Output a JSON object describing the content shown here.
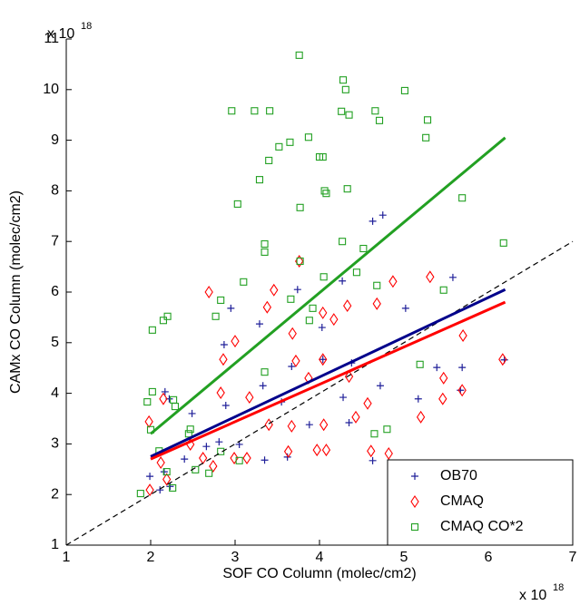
{
  "chart_data": {
    "type": "scatter",
    "x_label": "SOF CO Column (molec/cm2)",
    "y_label": "CAMx CO Column (molec/cm2)",
    "x_multiplier": {
      "base": "x 10",
      "exponent": "18"
    },
    "y_multiplier": {
      "base": "x 10",
      "exponent": "18"
    },
    "xlim": [
      1,
      7
    ],
    "xticks": [
      1,
      2,
      3,
      4,
      5,
      6,
      7
    ],
    "ylim": [
      1,
      11
    ],
    "yticks": [
      1,
      2,
      3,
      4,
      5,
      6,
      7,
      8,
      9,
      10,
      11
    ],
    "legend": "lower right",
    "series": [
      {
        "name": "OB70",
        "color": "#1f1f99",
        "marker": "plus",
        "x": [
          4.63,
          4.75,
          5.58,
          3.74,
          4.27,
          2.95,
          3.29,
          5.02,
          4.03,
          2.87,
          4.38,
          4.04,
          3.67,
          3.33,
          2.89,
          2.49,
          2.81,
          3.55,
          3.88,
          4.28,
          4.72,
          5.17,
          5.69,
          6.19,
          5.39,
          5.67,
          4.63,
          3.35,
          3.05,
          2.66,
          2.4,
          2.17,
          2.22,
          2.16,
          1.99,
          2.23,
          2.11,
          4.35,
          3.62
        ],
        "values": [
          7.4,
          7.52,
          6.29,
          6.05,
          6.22,
          5.68,
          5.37,
          5.68,
          5.3,
          4.96,
          4.6,
          4.67,
          4.53,
          4.15,
          3.76,
          3.6,
          3.04,
          3.83,
          3.38,
          3.92,
          4.15,
          3.89,
          4.51,
          4.66,
          4.51,
          4.06,
          2.67,
          2.68,
          2.99,
          2.95,
          2.7,
          4.03,
          3.89,
          2.45,
          2.36,
          2.16,
          2.09,
          3.42,
          2.74
        ]
      },
      {
        "name": "CMAQ",
        "color": "#ff0000",
        "marker": "diamond",
        "x": [
          3.76,
          5.31,
          2.69,
          3.38,
          3.0,
          2.86,
          4.17,
          4.33,
          4.68,
          4.04,
          3.68,
          3.72,
          2.83,
          3.17,
          3.4,
          3.87,
          4.04,
          4.35,
          4.57,
          5.2,
          5.47,
          5.7,
          5.69,
          6.17,
          4.43,
          4.05,
          3.97,
          4.08,
          3.63,
          3.67,
          2.99,
          3.14,
          2.74,
          2.62,
          2.47,
          2.15,
          1.98,
          2.12,
          1.99,
          2.19,
          4.61,
          4.82,
          5.46,
          4.87,
          3.46
        ],
        "values": [
          6.61,
          6.3,
          6.0,
          5.7,
          5.03,
          4.67,
          5.46,
          5.73,
          5.77,
          5.59,
          5.18,
          4.64,
          4.01,
          3.92,
          3.38,
          4.3,
          4.67,
          4.33,
          3.8,
          3.53,
          4.3,
          5.14,
          4.06,
          4.67,
          3.53,
          3.38,
          2.88,
          2.88,
          2.85,
          3.35,
          2.72,
          2.72,
          2.56,
          2.72,
          2.99,
          3.89,
          3.44,
          2.63,
          2.09,
          2.3,
          2.86,
          2.81,
          3.89,
          6.21,
          6.04
        ]
      },
      {
        "name": "CMAQ CO*2",
        "color": "#22a022",
        "marker": "square",
        "x": [
          3.76,
          4.28,
          4.31,
          5.01,
          4.66,
          4.26,
          4.35,
          2.96,
          3.23,
          3.41,
          5.28,
          4.71,
          5.26,
          3.87,
          3.65,
          3.52,
          4.0,
          4.04,
          3.4,
          3.29,
          4.06,
          4.33,
          4.08,
          3.03,
          3.77,
          5.69,
          6.18,
          4.27,
          3.35,
          3.35,
          4.52,
          3.77,
          4.05,
          3.1,
          4.44,
          4.68,
          5.47,
          2.83,
          3.66,
          2.15,
          2.2,
          2.02,
          2.77,
          5.19,
          2.02,
          2.27,
          1.96,
          2.29,
          2.47,
          2.45,
          2.83,
          3.05,
          4.8,
          4.65,
          2.0,
          2.1,
          2.53,
          2.69,
          1.88,
          2.19,
          2.26,
          3.35,
          3.88,
          3.92
        ],
        "values": [
          10.68,
          10.19,
          10.0,
          9.98,
          9.58,
          9.57,
          9.5,
          9.58,
          9.58,
          9.58,
          9.4,
          9.39,
          9.05,
          9.06,
          8.96,
          8.87,
          8.67,
          8.67,
          8.6,
          8.22,
          8.0,
          8.04,
          7.95,
          7.74,
          7.67,
          7.86,
          6.97,
          7.0,
          6.95,
          6.79,
          6.86,
          6.61,
          6.3,
          6.2,
          6.39,
          6.13,
          6.04,
          5.84,
          5.86,
          5.44,
          5.52,
          5.25,
          5.52,
          4.57,
          4.03,
          3.87,
          3.83,
          3.74,
          3.29,
          3.2,
          2.85,
          2.67,
          3.29,
          3.2,
          3.28,
          2.86,
          2.49,
          2.42,
          2.02,
          2.45,
          2.13,
          4.42,
          5.44,
          5.68
        ]
      }
    ],
    "lines": [
      {
        "color": "#000000",
        "dashed": true,
        "x": [
          1,
          7
        ],
        "values": [
          1,
          7
        ]
      },
      {
        "color": "#22a022",
        "x": [
          2,
          6.2
        ],
        "values": [
          3.2,
          9.05
        ]
      },
      {
        "color": "#00008b",
        "x": [
          2,
          6.2
        ],
        "values": [
          2.75,
          6.05
        ]
      },
      {
        "color": "#ff0000",
        "x": [
          2,
          6.2
        ],
        "values": [
          2.7,
          5.8
        ]
      }
    ]
  }
}
